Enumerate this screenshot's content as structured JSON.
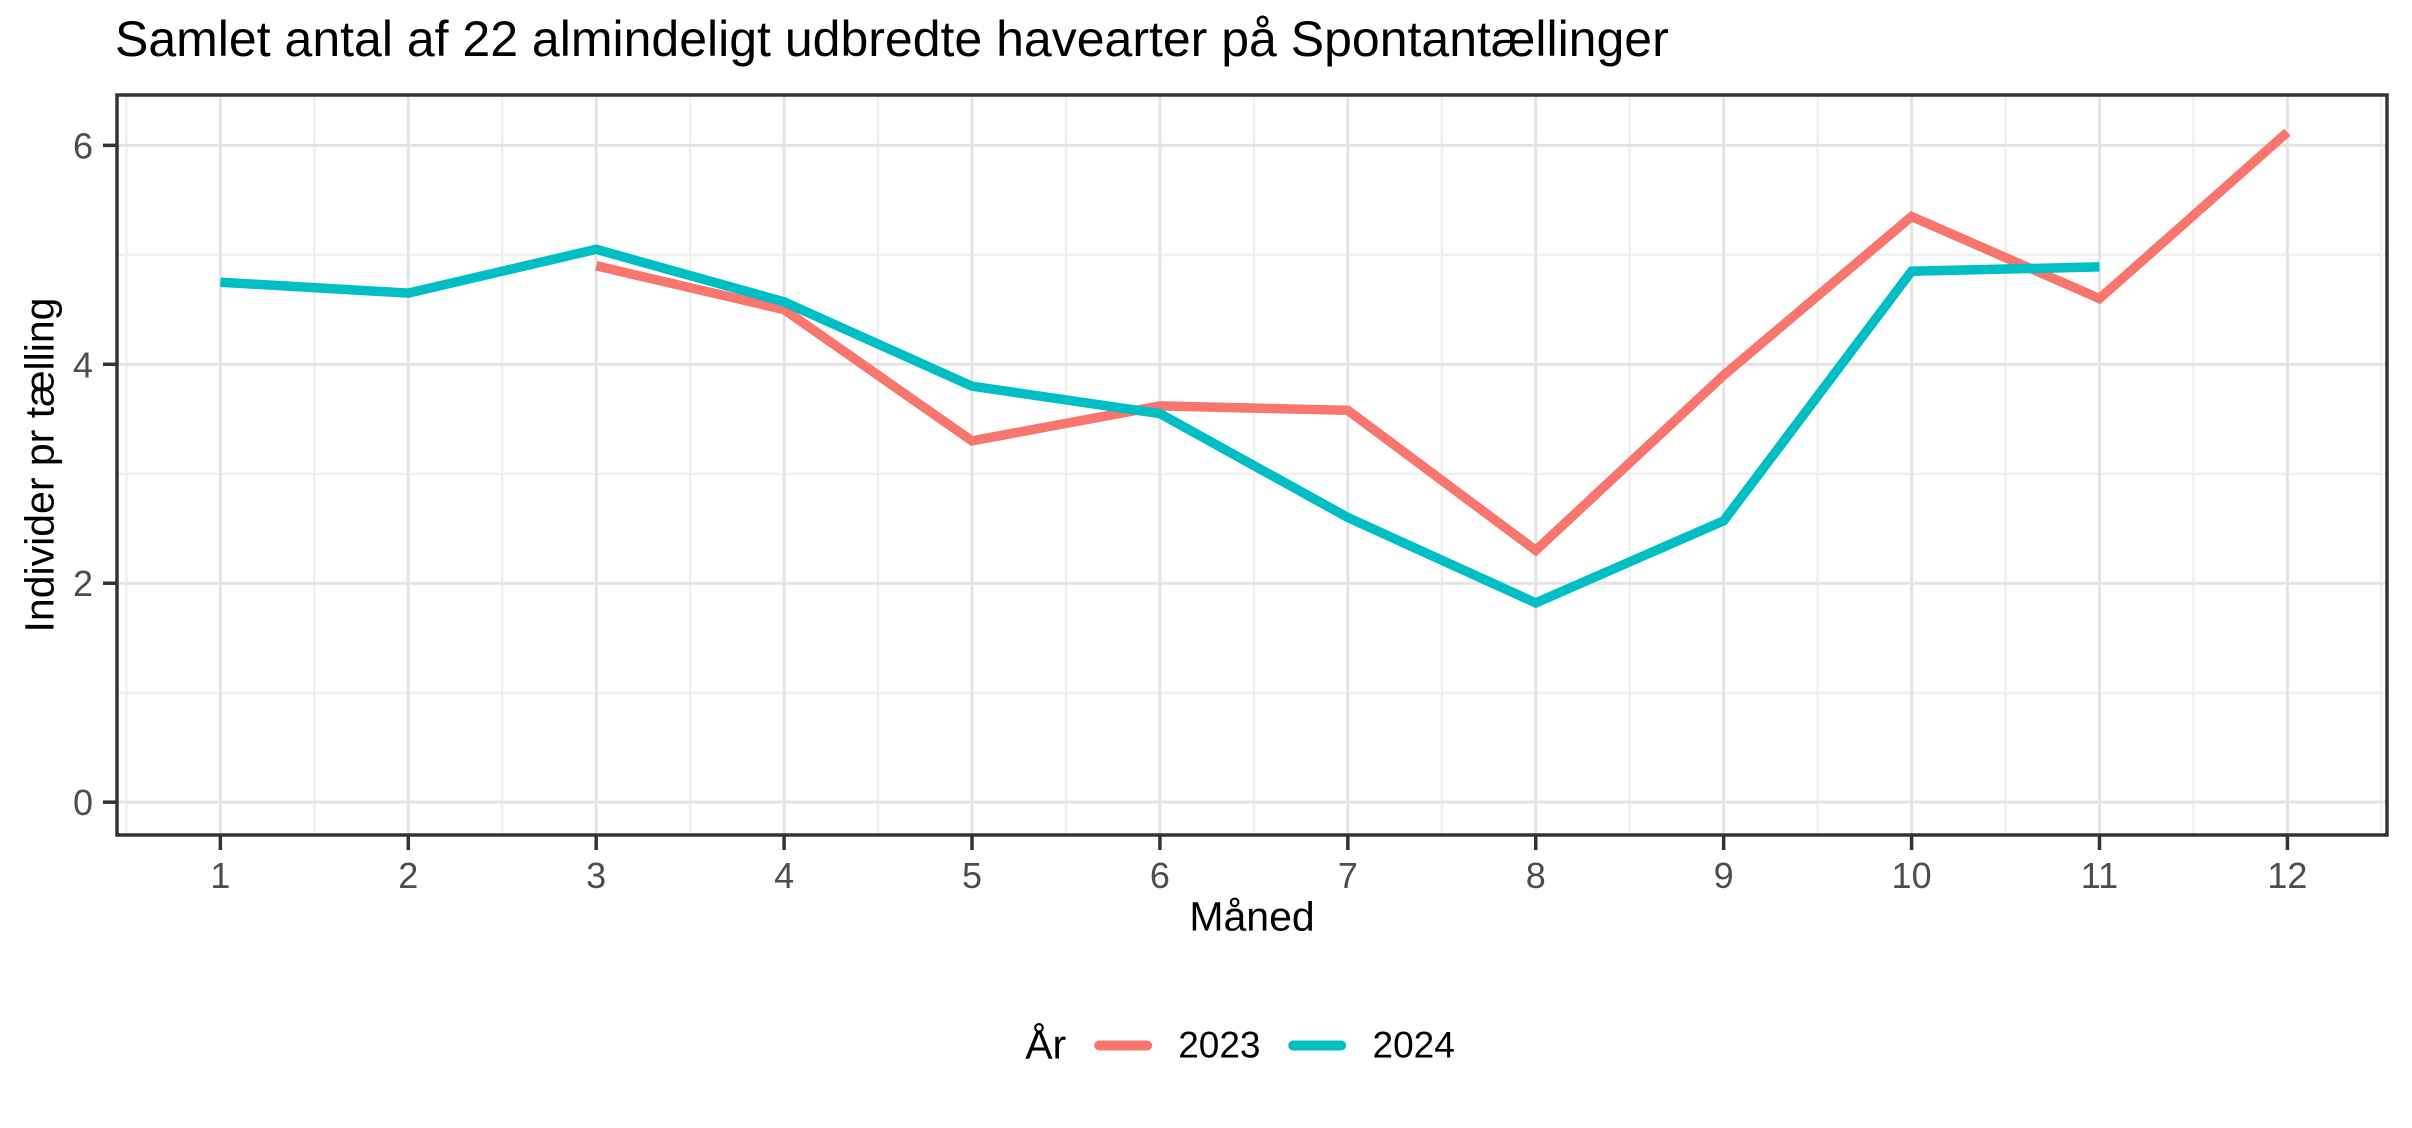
{
  "chart_data": {
    "type": "line",
    "title": "Samlet antal af 22 almindeligt udbredte havearter på Spontantællinger",
    "xlabel": "Måned",
    "ylabel": "Individer pr tælling",
    "legend_title": "År",
    "legend_position": "bottom",
    "grid": true,
    "x_ticks": [
      1,
      2,
      3,
      4,
      5,
      6,
      7,
      8,
      9,
      10,
      11,
      12
    ],
    "y_ticks": [
      0,
      2,
      4,
      6
    ],
    "x_range": [
      0.45,
      12.53
    ],
    "y_range": [
      -0.3,
      6.46
    ],
    "series": [
      {
        "name": "2023",
        "color": "#F8766D",
        "x": [
          3,
          4,
          5,
          6,
          7,
          8,
          9,
          10,
          11,
          12
        ],
        "y": [
          4.9,
          4.5,
          3.3,
          3.62,
          3.58,
          2.3,
          3.9,
          5.35,
          4.6,
          6.12
        ]
      },
      {
        "name": "2024",
        "color": "#00BFC4",
        "x": [
          1,
          2,
          3,
          4,
          5,
          6,
          7,
          8,
          9,
          10,
          11
        ],
        "y": [
          4.75,
          4.65,
          5.05,
          4.57,
          3.8,
          3.55,
          2.6,
          1.82,
          2.57,
          4.85,
          4.89
        ]
      }
    ],
    "colors": {
      "panel_border": "#333333",
      "tick_mark": "#333333",
      "tick_label": "#4d4d4d",
      "grid_major": "#e4e4e4",
      "grid_minor": "#f0f0f0",
      "background": "#ffffff"
    }
  }
}
